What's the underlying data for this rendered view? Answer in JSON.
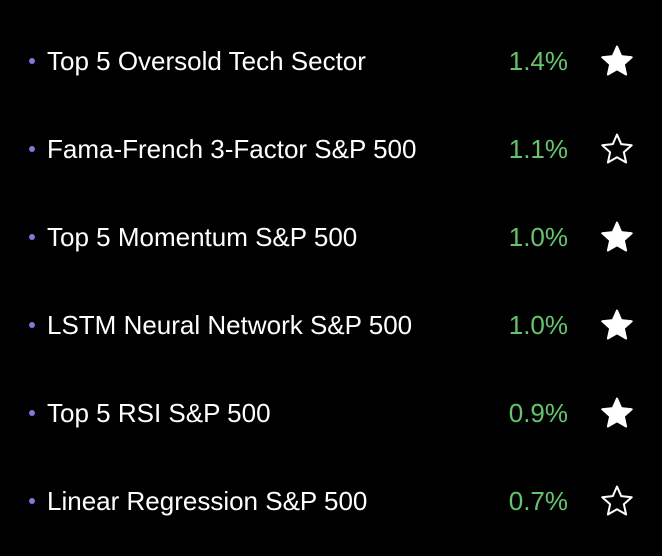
{
  "items": [
    {
      "name": "Top 5 Oversold Tech Sector",
      "change": "1.4%",
      "starred": true
    },
    {
      "name": "Fama-French 3-Factor S&P 500",
      "change": "1.1%",
      "starred": false
    },
    {
      "name": "Top 5 Momentum S&P 500",
      "change": "1.0%",
      "starred": true
    },
    {
      "name": "LSTM Neural Network S&P 500",
      "change": "1.0%",
      "starred": true
    },
    {
      "name": "Top 5 RSI S&P 500",
      "change": "0.9%",
      "starred": true
    },
    {
      "name": "Linear Regression S&P 500",
      "change": "0.7%",
      "starred": false
    }
  ]
}
